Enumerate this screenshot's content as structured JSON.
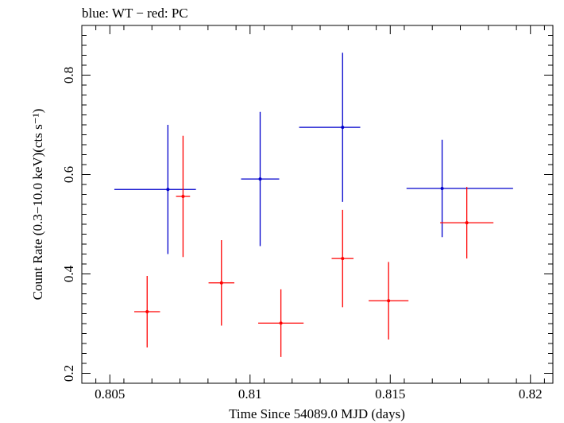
{
  "chart_data": {
    "type": "scatter",
    "title": "blue: WT − red: PC",
    "xlabel": "Time Since 54089.0 MJD (days)",
    "ylabel": "Count Rate (0.3−10.0 keV)(cts s⁻¹)",
    "xlim": [
      0.804,
      0.8208
    ],
    "ylim": [
      0.18,
      0.9
    ],
    "x_ticks": [
      0.805,
      0.81,
      0.815,
      0.82
    ],
    "x_tick_labels": [
      "0.805",
      "0.81",
      "0.815",
      "0.82"
    ],
    "y_ticks": [
      0.2,
      0.4,
      0.6,
      0.8
    ],
    "y_tick_labels": [
      "0.2",
      "0.4",
      "0.6",
      "0.8"
    ],
    "grid": false,
    "series": [
      {
        "color": "#0000cc",
        "points": [
          {
            "x": 0.80707,
            "xerr": [
              0.00191,
              0.001
            ],
            "y": 0.57,
            "yerr": 0.13
          },
          {
            "x": 0.81036,
            "xerr": [
              0.00068,
              0.00068
            ],
            "y": 0.591,
            "yerr": 0.135
          },
          {
            "x": 0.8133,
            "xerr": [
              0.00155,
              0.00063
            ],
            "y": 0.695,
            "yerr": 0.15
          },
          {
            "x": 0.81685,
            "xerr": [
              0.00127,
              0.00253
            ],
            "y": 0.572,
            "yerr": 0.098
          }
        ]
      },
      {
        "color": "#ff0000",
        "points": [
          {
            "x": 0.80633,
            "xerr": [
              0.00046,
              0.00046
            ],
            "y": 0.324,
            "yerr": 0.072
          },
          {
            "x": 0.80761,
            "xerr": [
              0.00025,
              0.00025
            ],
            "y": 0.556,
            "yerr": 0.122
          },
          {
            "x": 0.80898,
            "xerr": [
              0.00046,
              0.00046
            ],
            "y": 0.382,
            "yerr": 0.086
          },
          {
            "x": 0.8111,
            "xerr": [
              0.00081,
              0.00081
            ],
            "y": 0.301,
            "yerr": 0.068
          },
          {
            "x": 0.8133,
            "xerr": [
              0.00039,
              0.00039
            ],
            "y": 0.431,
            "yerr": 0.098
          },
          {
            "x": 0.81494,
            "xerr": [
              0.00071,
              0.00071
            ],
            "y": 0.346,
            "yerr": 0.078
          },
          {
            "x": 0.81773,
            "xerr": [
              0.00095,
              0.00095
            ],
            "y": 0.503,
            "yerr": 0.072
          }
        ]
      }
    ]
  }
}
